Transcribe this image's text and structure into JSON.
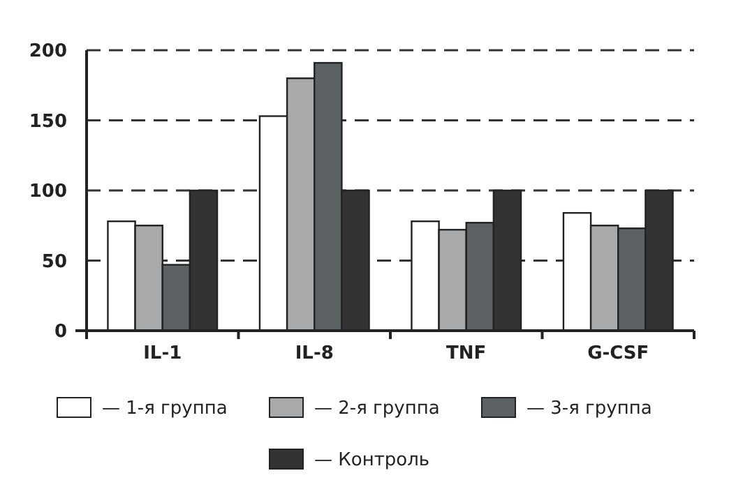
{
  "chart_data": {
    "type": "bar",
    "categories": [
      "IL-1",
      "IL-8",
      "TNF",
      "G-CSF"
    ],
    "series": [
      {
        "name": "— 1-я группа",
        "color": "#ffffff",
        "values": [
          78,
          153,
          78,
          84
        ]
      },
      {
        "name": "— 2-я группа",
        "color": "#a7a9ab",
        "values": [
          75,
          180,
          72,
          75
        ]
      },
      {
        "name": "— 3-я группа",
        "color": "#5c6163",
        "values": [
          47,
          191,
          77,
          73
        ]
      },
      {
        "name": "— Контроль",
        "color": "#333333",
        "values": [
          100,
          100,
          100,
          100
        ]
      }
    ],
    "ylim": [
      0,
      200
    ],
    "yticks": [
      0,
      50,
      100,
      150,
      200
    ],
    "grid": "y",
    "legend": "bottom"
  }
}
